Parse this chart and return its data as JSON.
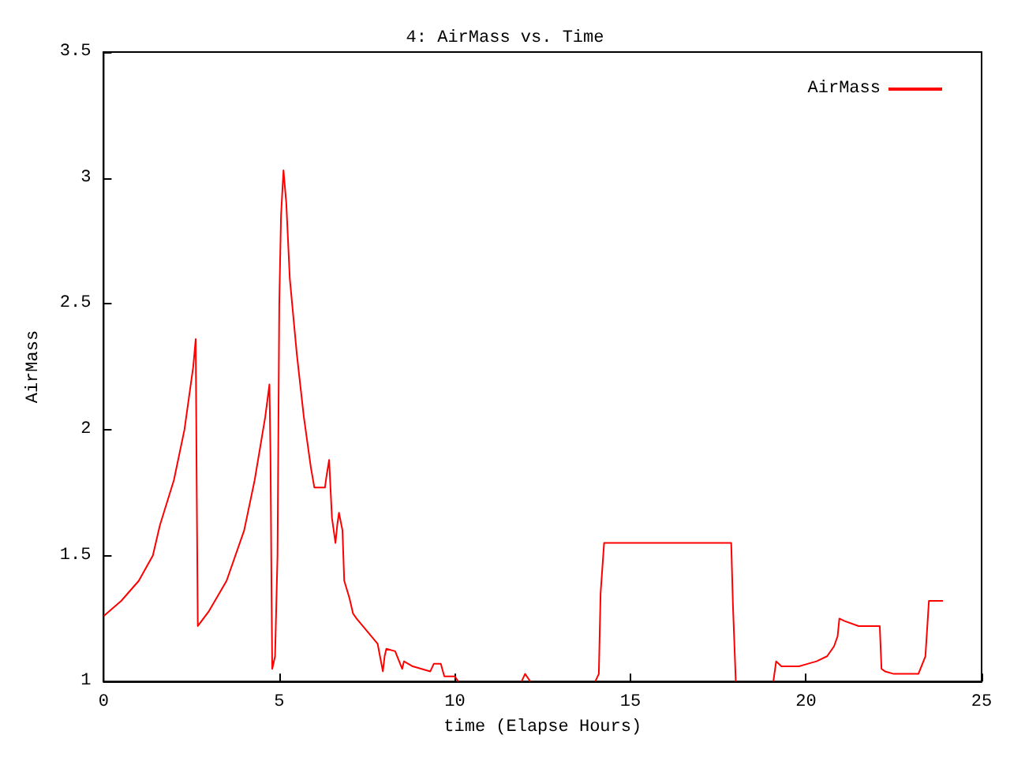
{
  "chart_data": {
    "type": "line",
    "title": "4: AirMass vs. Time",
    "xlabel": "time (Elapse Hours)",
    "ylabel": "AirMass",
    "xlim": [
      0,
      25
    ],
    "xticks": [
      0,
      5,
      10,
      15,
      20,
      25
    ],
    "ylim": [
      1,
      3.5
    ],
    "yticks": [
      1,
      1.5,
      2,
      2.5,
      3,
      3.5
    ],
    "grid": false,
    "legend": "top right",
    "marker": "none",
    "line_style": "solid",
    "series": [
      {
        "name": "AirMass",
        "color": "#ff0000",
        "x": [
          0,
          0.5,
          1.0,
          1.4,
          1.6,
          2.0,
          2.3,
          2.55,
          2.62,
          2.65,
          2.68,
          3.0,
          3.5,
          4.0,
          4.3,
          4.6,
          4.72,
          4.75,
          4.78,
          4.8,
          4.88,
          4.95,
          5.0,
          5.05,
          5.12,
          5.2,
          5.3,
          5.5,
          5.7,
          5.9,
          6.0,
          6.3,
          6.35,
          6.42,
          6.5,
          6.6,
          6.65,
          6.7,
          6.8,
          6.85,
          7.0,
          7.1,
          7.2,
          7.5,
          7.8,
          7.95,
          8.0,
          8.05,
          8.3,
          8.5,
          8.55,
          8.8,
          9.3,
          9.4,
          9.6,
          9.7,
          10.0,
          10.1,
          10.5,
          11.9,
          12.0,
          12.15,
          13,
          14.0,
          14.1,
          14.15,
          14.25,
          17.87,
          17.92,
          18.0,
          18.5,
          19.07,
          19.15,
          19.3,
          19.8,
          20.3,
          20.6,
          20.8,
          20.9,
          20.95,
          21.1,
          21.5,
          22.1,
          22.15,
          22.25,
          22.5,
          23.2,
          23.4,
          23.5,
          23.9
        ],
        "values": [
          1.26,
          1.32,
          1.4,
          1.5,
          1.62,
          1.8,
          2.0,
          2.25,
          2.36,
          1.75,
          1.22,
          1.28,
          1.4,
          1.6,
          1.8,
          2.05,
          2.18,
          1.9,
          1.35,
          1.05,
          1.1,
          1.5,
          2.5,
          2.85,
          3.03,
          2.9,
          2.6,
          2.3,
          2.05,
          1.85,
          1.77,
          1.77,
          1.82,
          1.88,
          1.65,
          1.55,
          1.62,
          1.67,
          1.6,
          1.4,
          1.33,
          1.27,
          1.25,
          1.2,
          1.15,
          1.04,
          1.1,
          1.13,
          1.12,
          1.05,
          1.08,
          1.06,
          1.04,
          1.07,
          1.07,
          1.02,
          1.02,
          1.0,
          null,
          1.0,
          1.03,
          1.0,
          null,
          1.0,
          1.03,
          1.35,
          1.55,
          1.55,
          1.3,
          1.0,
          null,
          1.0,
          1.08,
          1.06,
          1.06,
          1.08,
          1.1,
          1.14,
          1.18,
          1.25,
          1.24,
          1.22,
          1.22,
          1.05,
          1.04,
          1.03,
          1.03,
          1.1,
          1.32,
          1.32
        ]
      }
    ]
  }
}
